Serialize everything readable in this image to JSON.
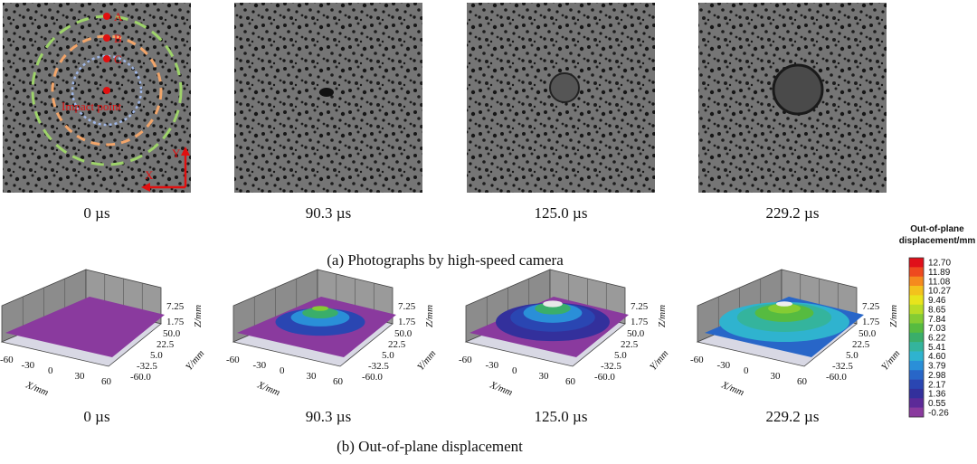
{
  "panel_a": {
    "caption": "(a) Photographs by high-speed camera",
    "frames": [
      "0 µs",
      "90.3 µs",
      "125.0 µs",
      "229.2 µs"
    ],
    "annotations": {
      "points": [
        "A",
        "B",
        "C"
      ],
      "impact": "Impact point",
      "x_axis": "X",
      "y_axis": "Y"
    }
  },
  "panel_b": {
    "caption": "(b) Out-of-plane displacement",
    "frames": [
      "0 µs",
      "90.3 µs",
      "125.0 µs",
      "229.2 µs"
    ],
    "axes": {
      "x_label": "X/mm",
      "y_label": "Y/mm",
      "z_label": "Z/mm",
      "x_ticks": [
        "-60",
        "-30",
        "0",
        "30",
        "60"
      ],
      "y_ticks": [
        "50.0",
        "22.5",
        "5.0",
        "-32.5",
        "-60.0"
      ],
      "z_ticks": [
        "7.25",
        "1.75"
      ]
    }
  },
  "colorbar": {
    "title": [
      "Out-of-plane",
      "displacement/mm"
    ],
    "levels": [
      "12.70",
      "11.89",
      "11.08",
      "10.27",
      "9.46",
      "8.65",
      "7.84",
      "7.03",
      "6.22",
      "5.41",
      "4.60",
      "3.79",
      "2.98",
      "2.17",
      "1.36",
      "0.55",
      "-0.26"
    ],
    "colors": [
      "#e0101a",
      "#ee4a1f",
      "#f58a1e",
      "#f3c21c",
      "#e8e41c",
      "#b9dc26",
      "#84cc33",
      "#56bb40",
      "#3aae6a",
      "#34b49d",
      "#2fb3cf",
      "#2a8fd8",
      "#2866c8",
      "#2a46b2",
      "#33309c",
      "#5c2a98",
      "#8a3a9e"
    ]
  }
}
